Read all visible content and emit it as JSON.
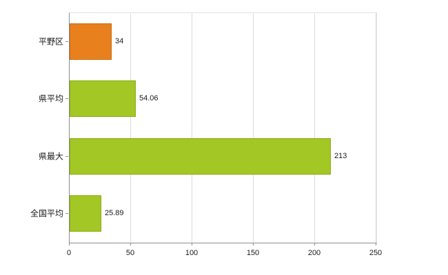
{
  "chart_data": {
    "type": "bar",
    "orientation": "horizontal",
    "title": "",
    "xlabel": "",
    "ylabel": "",
    "categories": [
      "平野区",
      "県平均",
      "県最大",
      "全国平均"
    ],
    "values": [
      34,
      54.06,
      213,
      25.89
    ],
    "value_labels": [
      "34",
      "54.06",
      "213",
      "25.89"
    ],
    "bar_colors": [
      "#e8801e",
      "#a3c724",
      "#a3c724",
      "#a3c724"
    ],
    "bar_border_colors": [
      "#c96a10",
      "#8aab15",
      "#8aab15",
      "#8aab15"
    ],
    "xlim": [
      0,
      250
    ],
    "xticks": [
      0,
      50,
      100,
      150,
      200,
      250
    ],
    "xtick_labels": [
      "0",
      "50",
      "100",
      "150",
      "200",
      "250"
    ],
    "grid": true,
    "gridline_color": "#dcdcdc",
    "axis_color": "#8c8c8c",
    "background_color": "#ffffff",
    "legend": null
  }
}
